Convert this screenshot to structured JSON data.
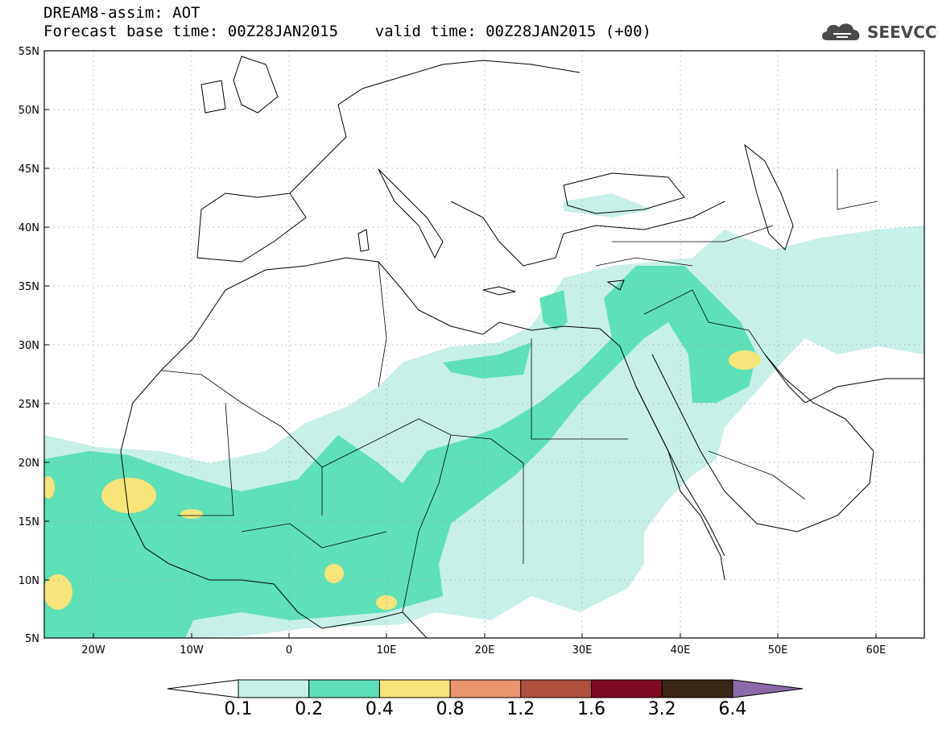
{
  "header": {
    "title_line1": "DREAM8-assim: AOT",
    "title_line2": "Forecast base time: 00Z28JAN2015    valid time: 00Z28JAN2015 (+00)"
  },
  "logo": {
    "text": "SEEVCCC",
    "icon": "cloud-icon"
  },
  "map": {
    "lat_labels": [
      "55N",
      "50N",
      "45N",
      "40N",
      "35N",
      "30N",
      "25N",
      "20N",
      "15N",
      "10N",
      "5N"
    ],
    "lon_labels": [
      "20W",
      "10W",
      "0",
      "10E",
      "20E",
      "30E",
      "40E",
      "50E",
      "60E"
    ],
    "lon_range": [
      -25,
      65
    ],
    "lat_range": [
      5,
      55
    ],
    "grid": "dotted",
    "colors": {
      "land_line": "#000000",
      "grid": "#9a9a9a"
    }
  },
  "colorbar": {
    "labels": [
      "0.1",
      "0.2",
      "0.4",
      "0.8",
      "1.2",
      "1.6",
      "3.2",
      "6.4"
    ],
    "colors": [
      "#ffffff",
      "#c7f0e8",
      "#5ee0b8",
      "#f7e47a",
      "#ea9470",
      "#b0503e",
      "#7e0a23",
      "#3b2513",
      "#8a6aa8"
    ]
  }
}
